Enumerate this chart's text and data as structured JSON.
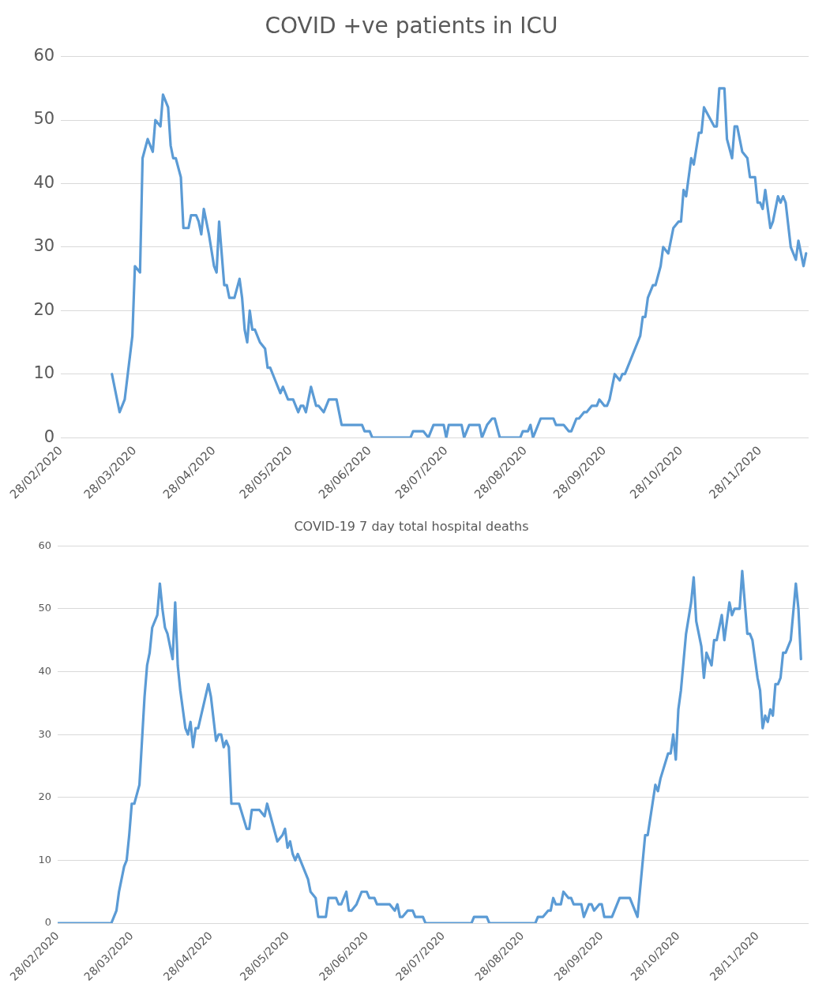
{
  "chart_data": [
    {
      "type": "line",
      "title": "COVID +ve patients in ICU",
      "grid": "y",
      "legend": false,
      "marker": "none",
      "line_style": "solid",
      "xlim": [
        "2020-02-28",
        "2020-12-17"
      ],
      "xticks": [
        {
          "value": "2020-02-28",
          "label": "28/02/2020"
        },
        {
          "value": "2020-03-28",
          "label": "28/03/2020"
        },
        {
          "value": "2020-04-28",
          "label": "28/04/2020"
        },
        {
          "value": "2020-05-28",
          "label": "28/05/2020"
        },
        {
          "value": "2020-06-28",
          "label": "28/06/2020"
        },
        {
          "value": "2020-07-28",
          "label": "28/07/2020"
        },
        {
          "value": "2020-08-28",
          "label": "28/08/2020"
        },
        {
          "value": "2020-09-28",
          "label": "28/09/2020"
        },
        {
          "value": "2020-10-28",
          "label": "28/10/2020"
        },
        {
          "value": "2020-11-28",
          "label": "28/11/2020"
        }
      ],
      "ylim": [
        0,
        60
      ],
      "yticks": [
        0,
        10,
        20,
        30,
        40,
        50,
        60
      ],
      "series": [
        {
          "color": "#5b9bd5",
          "x": [
            "2020-03-19",
            "2020-03-22",
            "2020-03-24",
            "2020-03-27",
            "2020-03-28",
            "2020-03-30",
            "2020-03-31",
            "2020-04-02",
            "2020-04-04",
            "2020-04-05",
            "2020-04-07",
            "2020-04-08",
            "2020-04-10",
            "2020-04-11",
            "2020-04-12",
            "2020-04-13",
            "2020-04-15",
            "2020-04-16",
            "2020-04-18",
            "2020-04-19",
            "2020-04-21",
            "2020-04-22",
            "2020-04-23",
            "2020-04-24",
            "2020-04-26",
            "2020-04-28",
            "2020-04-29",
            "2020-04-30",
            "2020-05-02",
            "2020-05-03",
            "2020-05-04",
            "2020-05-06",
            "2020-05-08",
            "2020-05-09",
            "2020-05-10",
            "2020-05-11",
            "2020-05-12",
            "2020-05-13",
            "2020-05-14",
            "2020-05-16",
            "2020-05-18",
            "2020-05-19",
            "2020-05-20",
            "2020-05-22",
            "2020-05-24",
            "2020-05-25",
            "2020-05-27",
            "2020-05-29",
            "2020-05-31",
            "2020-06-01",
            "2020-06-02",
            "2020-06-03",
            "2020-06-05",
            "2020-06-07",
            "2020-06-08",
            "2020-06-10",
            "2020-06-12",
            "2020-06-15",
            "2020-06-17",
            "2020-06-25",
            "2020-06-26",
            "2020-06-28",
            "2020-06-29",
            "2020-07-14",
            "2020-07-15",
            "2020-07-19",
            "2020-07-21",
            "2020-07-23",
            "2020-07-27",
            "2020-07-28",
            "2020-07-29",
            "2020-08-03",
            "2020-08-04",
            "2020-08-06",
            "2020-08-10",
            "2020-08-11",
            "2020-08-13",
            "2020-08-15",
            "2020-08-16",
            "2020-08-18",
            "2020-08-26",
            "2020-08-27",
            "2020-08-29",
            "2020-08-30",
            "2020-08-31",
            "2020-09-03",
            "2020-09-08",
            "2020-09-09",
            "2020-09-12",
            "2020-09-14",
            "2020-09-15",
            "2020-09-17",
            "2020-09-18",
            "2020-09-20",
            "2020-09-21",
            "2020-09-23",
            "2020-09-25",
            "2020-09-26",
            "2020-09-28",
            "2020-09-29",
            "2020-09-30",
            "2020-10-02",
            "2020-10-04",
            "2020-10-05",
            "2020-10-06",
            "2020-10-08",
            "2020-10-12",
            "2020-10-13",
            "2020-10-14",
            "2020-10-15",
            "2020-10-17",
            "2020-10-18",
            "2020-10-20",
            "2020-10-21",
            "2020-10-23",
            "2020-10-25",
            "2020-10-27",
            "2020-10-28",
            "2020-10-29",
            "2020-10-30",
            "2020-11-01",
            "2020-11-02",
            "2020-11-04",
            "2020-11-05",
            "2020-11-06",
            "2020-11-10",
            "2020-11-11",
            "2020-11-12",
            "2020-11-14",
            "2020-11-15",
            "2020-11-17",
            "2020-11-18",
            "2020-11-19",
            "2020-11-21",
            "2020-11-23",
            "2020-11-24",
            "2020-11-26",
            "2020-11-27",
            "2020-11-28",
            "2020-11-29",
            "2020-11-30",
            "2020-12-02",
            "2020-12-03",
            "2020-12-05",
            "2020-12-06",
            "2020-12-07",
            "2020-12-08",
            "2020-12-10",
            "2020-12-12",
            "2020-12-13",
            "2020-12-15",
            "2020-12-16"
          ],
          "values": [
            10,
            4,
            6,
            16,
            27,
            26,
            44,
            47,
            45,
            50,
            49,
            54,
            52,
            46,
            44,
            44,
            41,
            33,
            33,
            35,
            35,
            34,
            32,
            36,
            32,
            27,
            26,
            34,
            24,
            24,
            22,
            22,
            25,
            22,
            17,
            15,
            20,
            17,
            17,
            15,
            14,
            11,
            11,
            9,
            7,
            8,
            6,
            6,
            4,
            5,
            5,
            4,
            8,
            5,
            5,
            4,
            6,
            6,
            2,
            2,
            1,
            1,
            0,
            0,
            1,
            1,
            0,
            2,
            2,
            0,
            2,
            2,
            0,
            2,
            2,
            0,
            2,
            3,
            3,
            0,
            0,
            1,
            1,
            2,
            0,
            3,
            3,
            2,
            2,
            1,
            1,
            3,
            3,
            4,
            4,
            5,
            5,
            6,
            5,
            5,
            6,
            10,
            9,
            10,
            10,
            12,
            16,
            19,
            19,
            22,
            24,
            24,
            27,
            30,
            29,
            33,
            34,
            34,
            39,
            38,
            44,
            43,
            48,
            48,
            52,
            49,
            49,
            55,
            55,
            47,
            44,
            49,
            49,
            45,
            44,
            41,
            41,
            37,
            37,
            36,
            39,
            33,
            34,
            38,
            37,
            38,
            37,
            30,
            28,
            31,
            27,
            29
          ]
        }
      ]
    },
    {
      "type": "line",
      "title": "COVID-19 7 day total hospital deaths",
      "grid": "y",
      "legend": false,
      "marker": "none",
      "line_style": "solid",
      "xlim": [
        "2020-02-28",
        "2020-12-18"
      ],
      "xticks": [
        {
          "value": "2020-02-28",
          "label": "28/02/2020"
        },
        {
          "value": "2020-03-28",
          "label": "28/03/2020"
        },
        {
          "value": "2020-04-28",
          "label": "28/04/2020"
        },
        {
          "value": "2020-05-28",
          "label": "28/05/2020"
        },
        {
          "value": "2020-06-28",
          "label": "28/06/2020"
        },
        {
          "value": "2020-07-28",
          "label": "28/07/2020"
        },
        {
          "value": "2020-08-28",
          "label": "28/08/2020"
        },
        {
          "value": "2020-09-28",
          "label": "28/09/2020"
        },
        {
          "value": "2020-10-28",
          "label": "28/10/2020"
        },
        {
          "value": "2020-11-28",
          "label": "28/11/2020"
        }
      ],
      "ylim": [
        0,
        60
      ],
      "yticks": [
        0,
        10,
        20,
        30,
        40,
        50,
        60
      ],
      "series": [
        {
          "color": "#5b9bd5",
          "x": [
            "2020-02-28",
            "2020-03-20",
            "2020-03-22",
            "2020-03-23",
            "2020-03-25",
            "2020-03-26",
            "2020-03-27",
            "2020-03-28",
            "2020-03-29",
            "2020-03-31",
            "2020-04-01",
            "2020-04-02",
            "2020-04-03",
            "2020-04-04",
            "2020-04-05",
            "2020-04-07",
            "2020-04-08",
            "2020-04-09",
            "2020-04-10",
            "2020-04-11",
            "2020-04-13",
            "2020-04-14",
            "2020-04-15",
            "2020-04-16",
            "2020-04-18",
            "2020-04-19",
            "2020-04-20",
            "2020-04-21",
            "2020-04-22",
            "2020-04-23",
            "2020-04-27",
            "2020-04-28",
            "2020-04-30",
            "2020-05-01",
            "2020-05-02",
            "2020-05-03",
            "2020-05-04",
            "2020-05-05",
            "2020-05-06",
            "2020-05-09",
            "2020-05-12",
            "2020-05-13",
            "2020-05-14",
            "2020-05-17",
            "2020-05-19",
            "2020-05-20",
            "2020-05-24",
            "2020-05-26",
            "2020-05-27",
            "2020-05-28",
            "2020-05-29",
            "2020-05-30",
            "2020-05-31",
            "2020-06-01",
            "2020-06-03",
            "2020-06-05",
            "2020-06-06",
            "2020-06-08",
            "2020-06-09",
            "2020-06-12",
            "2020-06-13",
            "2020-06-16",
            "2020-06-17",
            "2020-06-18",
            "2020-06-20",
            "2020-06-21",
            "2020-06-22",
            "2020-06-24",
            "2020-06-26",
            "2020-06-28",
            "2020-06-29",
            "2020-07-01",
            "2020-07-02",
            "2020-07-07",
            "2020-07-09",
            "2020-07-10",
            "2020-07-11",
            "2020-07-12",
            "2020-07-14",
            "2020-07-16",
            "2020-07-17",
            "2020-07-20",
            "2020-07-21",
            "2020-08-08",
            "2020-08-09",
            "2020-08-14",
            "2020-08-15",
            "2020-09-02",
            "2020-09-03",
            "2020-09-05",
            "2020-09-07",
            "2020-09-08",
            "2020-09-09",
            "2020-09-10",
            "2020-09-12",
            "2020-09-13",
            "2020-09-15",
            "2020-09-16",
            "2020-09-17",
            "2020-09-20",
            "2020-09-21",
            "2020-09-23",
            "2020-09-24",
            "2020-09-25",
            "2020-09-27",
            "2020-09-28",
            "2020-09-29",
            "2020-10-02",
            "2020-10-05",
            "2020-10-09",
            "2020-10-12",
            "2020-10-15",
            "2020-10-16",
            "2020-10-19",
            "2020-10-20",
            "2020-10-21",
            "2020-10-24",
            "2020-10-25",
            "2020-10-26",
            "2020-10-27",
            "2020-10-28",
            "2020-10-29",
            "2020-10-31",
            "2020-11-02",
            "2020-11-03",
            "2020-11-04",
            "2020-11-06",
            "2020-11-07",
            "2020-11-08",
            "2020-11-10",
            "2020-11-11",
            "2020-11-12",
            "2020-11-14",
            "2020-11-15",
            "2020-11-17",
            "2020-11-18",
            "2020-11-19",
            "2020-11-21",
            "2020-11-22",
            "2020-11-24",
            "2020-11-25",
            "2020-11-26",
            "2020-11-28",
            "2020-11-29",
            "2020-11-30",
            "2020-12-01",
            "2020-12-02",
            "2020-12-03",
            "2020-12-04",
            "2020-12-05",
            "2020-12-06",
            "2020-12-07",
            "2020-12-08",
            "2020-12-09",
            "2020-12-11",
            "2020-12-13",
            "2020-12-14",
            "2020-12-15"
          ],
          "values": [
            0,
            0,
            2,
            5,
            9,
            10,
            14,
            19,
            19,
            22,
            29,
            36,
            41,
            43,
            47,
            49,
            54,
            50,
            47,
            46,
            42,
            51,
            41,
            37,
            31,
            30,
            32,
            28,
            31,
            31,
            38,
            36,
            29,
            30,
            30,
            28,
            29,
            28,
            19,
            19,
            15,
            15,
            18,
            18,
            17,
            19,
            13,
            14,
            15,
            12,
            13,
            11,
            10,
            11,
            9,
            7,
            5,
            4,
            1,
            1,
            4,
            4,
            3,
            3,
            5,
            2,
            2,
            3,
            5,
            5,
            4,
            4,
            3,
            3,
            2,
            3,
            1,
            1,
            2,
            2,
            1,
            1,
            0,
            0,
            1,
            1,
            0,
            0,
            1,
            1,
            2,
            2,
            4,
            3,
            3,
            5,
            4,
            4,
            3,
            3,
            1,
            3,
            3,
            2,
            3,
            3,
            1,
            1,
            4,
            4,
            1,
            14,
            14,
            22,
            21,
            23,
            27,
            27,
            30,
            26,
            34,
            37,
            46,
            51,
            55,
            48,
            44,
            39,
            43,
            41,
            45,
            45,
            49,
            45,
            51,
            49,
            50,
            50,
            56,
            46,
            46,
            45,
            39,
            37,
            31,
            33,
            32,
            34,
            33,
            38,
            38,
            39,
            43,
            43,
            45,
            54,
            50,
            42
          ]
        }
      ]
    }
  ]
}
